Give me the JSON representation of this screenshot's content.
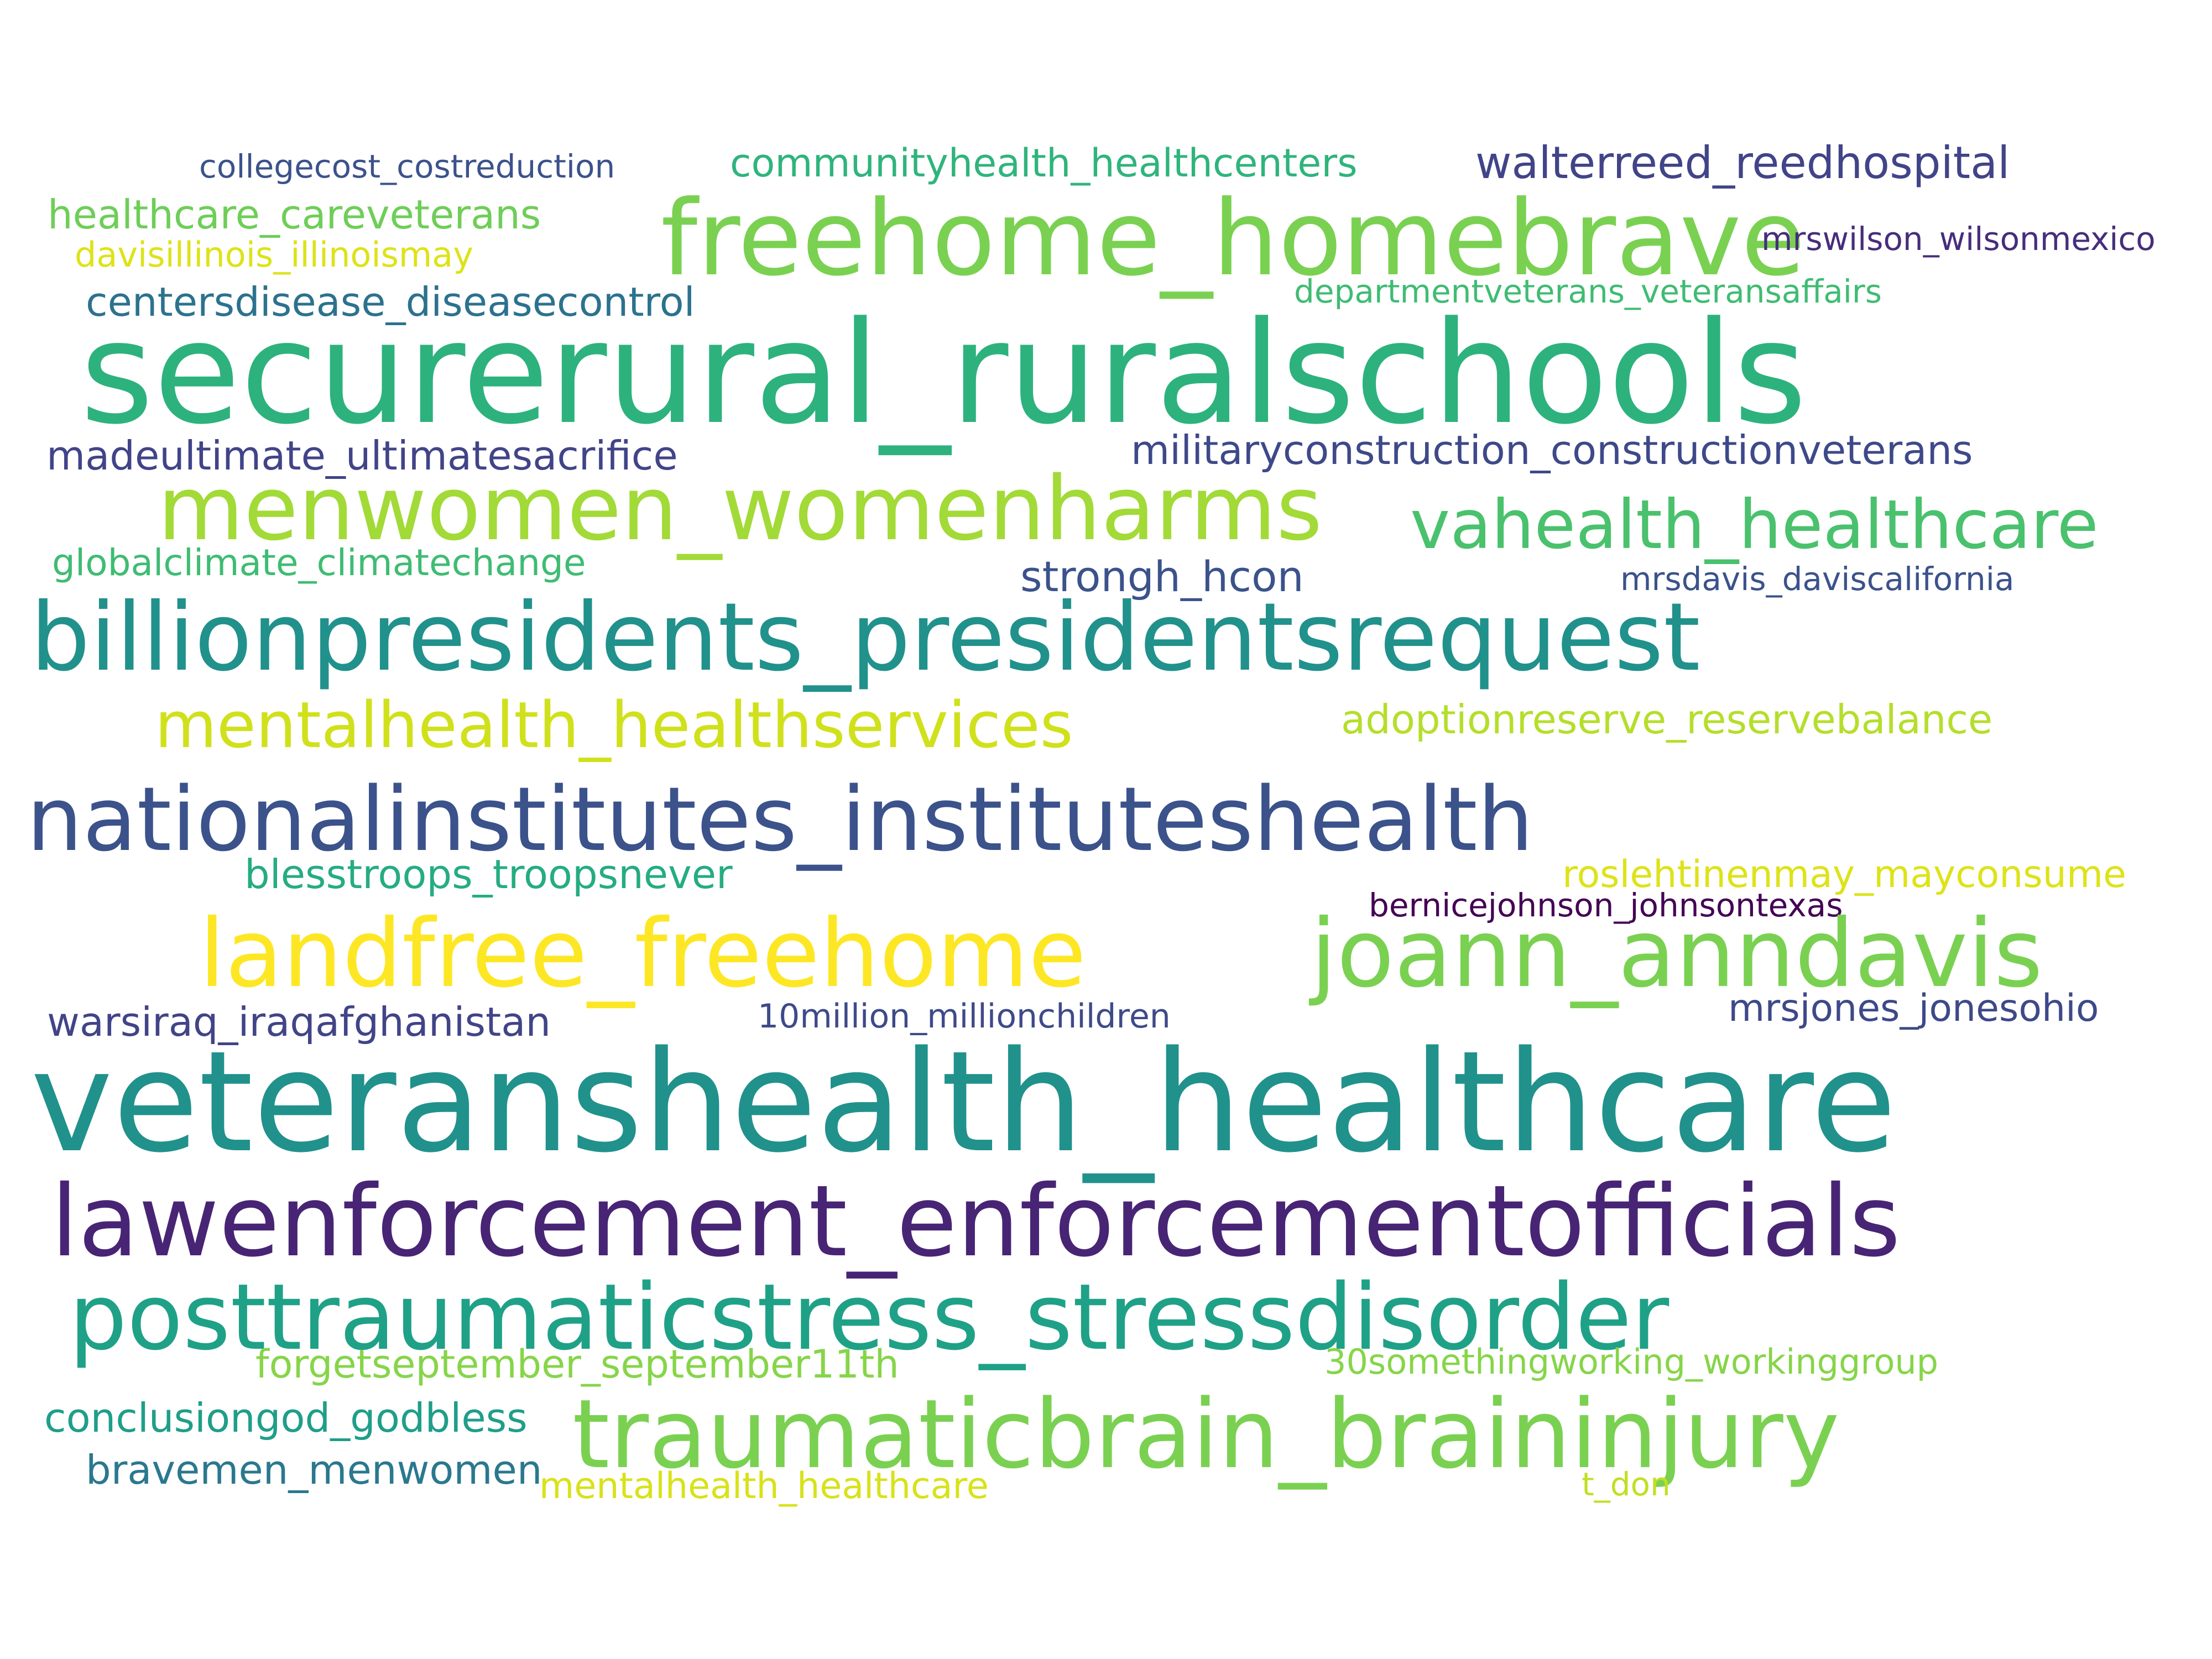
{
  "words": [
    {
      "text": "collegecost_costreduction",
      "color": "#3b528b"
    },
    {
      "text": "communityhealth_healthcenters",
      "color": "#2fb47c"
    },
    {
      "text": "walterreed_reedhospital",
      "color": "#414487"
    },
    {
      "text": "healthcare_careveterans",
      "color": "#6ece58"
    },
    {
      "text": "freehome_homebrave",
      "color": "#7ad151"
    },
    {
      "text": "davisillinois_illinoismay",
      "color": "#dde318"
    },
    {
      "text": "mrswilson_wilsonmexico",
      "color": "#472d7b"
    },
    {
      "text": "centersdisease_diseasecontrol",
      "color": "#2c728e"
    },
    {
      "text": "departmentveterans_veteransaffairs",
      "color": "#3fbc73"
    },
    {
      "text": "securerural_ruralschools",
      "color": "#2db27d"
    },
    {
      "text": "madeultimate_ultimatesacrifice",
      "color": "#414487"
    },
    {
      "text": "militaryconstruction_constructionveterans",
      "color": "#3e4989"
    },
    {
      "text": "menwomen_womenharms",
      "color": "#a2da37"
    },
    {
      "text": "vahealth_healthcare",
      "color": "#4ac16d"
    },
    {
      "text": "globalclimate_climatechange",
      "color": "#3fbc73"
    },
    {
      "text": "strongh_hcon",
      "color": "#3b528b"
    },
    {
      "text": "mrsdavis_daviscalifornia",
      "color": "#3b528b"
    },
    {
      "text": "billionpresidents_presidentsrequest",
      "color": "#21918c"
    },
    {
      "text": "mentalhealth_healthservices",
      "color": "#d0e11c"
    },
    {
      "text": "adoptionreserve_reservebalance",
      "color": "#b5de2b"
    },
    {
      "text": "nationalinstitutes_instituteshealth",
      "color": "#3b528b"
    },
    {
      "text": "blesstroops_troopsnever",
      "color": "#25ac82"
    },
    {
      "text": "roslehtinenmay_mayconsume",
      "color": "#dde318"
    },
    {
      "text": "bernicejohnson_johnsontexas",
      "color": "#440154"
    },
    {
      "text": "landfree_freehome",
      "color": "#fde725"
    },
    {
      "text": "joann_anndavis",
      "color": "#7ad151"
    },
    {
      "text": "warsiraq_iraqafghanistan",
      "color": "#414487"
    },
    {
      "text": "10million_millionchildren",
      "color": "#3e4a89"
    },
    {
      "text": "mrsjones_jonesohio",
      "color": "#3e4989"
    },
    {
      "text": "veteranshealth_healthcare",
      "color": "#21918c"
    },
    {
      "text": "lawenforcement_enforcementofficials",
      "color": "#482475"
    },
    {
      "text": "posttraumaticstress_stressdisorder",
      "color": "#1fa187"
    },
    {
      "text": "forgetseptember_september11th",
      "color": "#86d549"
    },
    {
      "text": "30somethingworking_workinggroup",
      "color": "#86d549"
    },
    {
      "text": "conclusiongod_godbless",
      "color": "#1f9e89"
    },
    {
      "text": "traumaticbrain_braininjury",
      "color": "#7ad151"
    },
    {
      "text": "bravemen_menwomen",
      "color": "#2a788e"
    },
    {
      "text": "mentalhealth_healthcare",
      "color": "#d8e219"
    },
    {
      "text": "t_don",
      "color": "#c2df23"
    }
  ]
}
